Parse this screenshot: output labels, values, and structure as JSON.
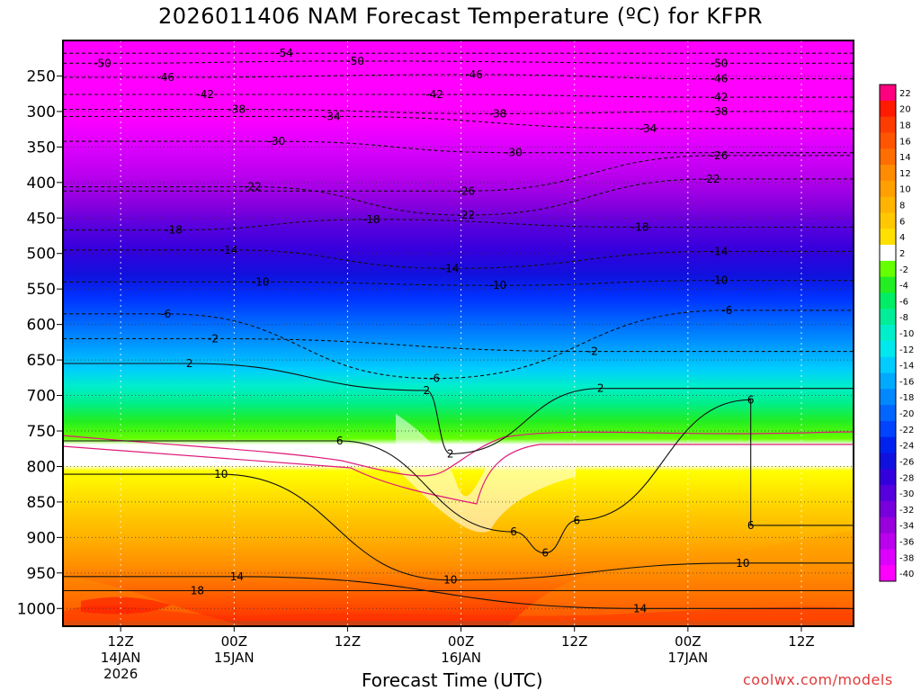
{
  "title": "2026011406 NAM Forecast Temperature (ºC) for KFPR",
  "watermark": "coolwx.com/models",
  "chart_data": {
    "type": "heatmap",
    "title": "2026011406 NAM Forecast Temperature (ºC) for KFPR",
    "xlabel": "Forecast Time (UTC)",
    "ylabel": "",
    "y_ticks": [
      250,
      300,
      350,
      400,
      450,
      500,
      550,
      600,
      650,
      700,
      750,
      800,
      850,
      900,
      950,
      1000
    ],
    "ylim": [
      1025,
      200
    ],
    "x_ticks": [
      {
        "top": "12Z",
        "mid": "14JAN",
        "bot": "2026"
      },
      {
        "top": "00Z",
        "mid": "15JAN",
        "bot": ""
      },
      {
        "top": "12Z",
        "mid": "",
        "bot": ""
      },
      {
        "top": "00Z",
        "mid": "16JAN",
        "bot": ""
      },
      {
        "top": "12Z",
        "mid": "",
        "bot": ""
      },
      {
        "top": "00Z",
        "mid": "17JAN",
        "bot": ""
      },
      {
        "top": "12Z",
        "mid": "",
        "bot": ""
      }
    ],
    "colorbar": {
      "labels": [
        "22",
        "20",
        "18",
        "16",
        "14",
        "12",
        "10",
        "8",
        "6",
        "4",
        "2",
        "-2",
        "-4",
        "-6",
        "-8",
        "-10",
        "-12",
        "-14",
        "-16",
        "-18",
        "-20",
        "-22",
        "-24",
        "-26",
        "-28",
        "-30",
        "-32",
        "-34",
        "-36",
        "-38",
        "-40"
      ],
      "colors": [
        "#ff007f",
        "#ff1a00",
        "#ff3c00",
        "#ff5500",
        "#ff6e00",
        "#ff8c00",
        "#ffa000",
        "#ffb400",
        "#ffc800",
        "#ffe000",
        "#ffffff",
        "#66ff00",
        "#22ee22",
        "#00ee66",
        "#00ee99",
        "#00eecc",
        "#00e8ee",
        "#00ccff",
        "#00aaff",
        "#0088ff",
        "#0066ff",
        "#0044ff",
        "#0022ee",
        "#1111dd",
        "#3300dd",
        "#5500dd",
        "#7700dd",
        "#9900dd",
        "#bb00ee",
        "#dd00ff",
        "#ff00ff"
      ]
    },
    "grid": true,
    "contour_labels": [
      {
        "v": "-54",
        "t": 0.28,
        "p": 218
      },
      {
        "v": "-50",
        "t": 0.05,
        "p": 232
      },
      {
        "v": "-50",
        "t": 0.37,
        "p": 229
      },
      {
        "v": "-50",
        "t": 0.83,
        "p": 232
      },
      {
        "v": "-46",
        "t": 0.13,
        "p": 252
      },
      {
        "v": "-46",
        "t": 0.52,
        "p": 248
      },
      {
        "v": "-46",
        "t": 0.83,
        "p": 254
      },
      {
        "v": "-42",
        "t": 0.18,
        "p": 276
      },
      {
        "v": "-42",
        "t": 0.47,
        "p": 276
      },
      {
        "v": "-42",
        "t": 0.83,
        "p": 280
      },
      {
        "v": "-38",
        "t": 0.22,
        "p": 297
      },
      {
        "v": "-38",
        "t": 0.55,
        "p": 303
      },
      {
        "v": "-38",
        "t": 0.83,
        "p": 300
      },
      {
        "v": "-34",
        "t": 0.34,
        "p": 307
      },
      {
        "v": "-34",
        "t": 0.74,
        "p": 324
      },
      {
        "v": "-30",
        "t": 0.27,
        "p": 342
      },
      {
        "v": "-30",
        "t": 0.57,
        "p": 358
      },
      {
        "v": "-26",
        "t": 0.83,
        "p": 362
      },
      {
        "v": "-26",
        "t": 0.51,
        "p": 412
      },
      {
        "v": "-22",
        "t": 0.24,
        "p": 406
      },
      {
        "v": "-22",
        "t": 0.82,
        "p": 395
      },
      {
        "v": "-22",
        "t": 0.51,
        "p": 446
      },
      {
        "v": "-18",
        "t": 0.14,
        "p": 467
      },
      {
        "v": "-18",
        "t": 0.39,
        "p": 452
      },
      {
        "v": "-18",
        "t": 0.73,
        "p": 463
      },
      {
        "v": "-14",
        "t": 0.21,
        "p": 495
      },
      {
        "v": "-14",
        "t": 0.49,
        "p": 521
      },
      {
        "v": "-14",
        "t": 0.83,
        "p": 497
      },
      {
        "v": "-10",
        "t": 0.25,
        "p": 540
      },
      {
        "v": "-10",
        "t": 0.55,
        "p": 545
      },
      {
        "v": "-10",
        "t": 0.83,
        "p": 538
      },
      {
        "v": "-6",
        "t": 0.13,
        "p": 585
      },
      {
        "v": "-6",
        "t": 0.47,
        "p": 676
      },
      {
        "v": "-6",
        "t": 0.84,
        "p": 580
      },
      {
        "v": "-2",
        "t": 0.19,
        "p": 620
      },
      {
        "v": "-2",
        "t": 0.67,
        "p": 638
      },
      {
        "v": "2",
        "t": 0.16,
        "p": 655
      },
      {
        "v": "2",
        "t": 0.46,
        "p": 693
      },
      {
        "v": "2",
        "t": 0.49,
        "p": 782
      },
      {
        "v": "2",
        "t": 0.68,
        "p": 690
      },
      {
        "v": "6",
        "t": 0.35,
        "p": 764
      },
      {
        "v": "6",
        "t": 0.87,
        "p": 706
      },
      {
        "v": "6",
        "t": 0.57,
        "p": 892
      },
      {
        "v": "6",
        "t": 0.65,
        "p": 876
      },
      {
        "v": "6",
        "t": 0.61,
        "p": 922
      },
      {
        "v": "6",
        "t": 0.87,
        "p": 883
      },
      {
        "v": "10",
        "t": 0.2,
        "p": 811
      },
      {
        "v": "10",
        "t": 0.49,
        "p": 960
      },
      {
        "v": "10",
        "t": 0.86,
        "p": 936
      },
      {
        "v": "14",
        "t": 0.22,
        "p": 955
      },
      {
        "v": "14",
        "t": 0.73,
        "p": 1000
      },
      {
        "v": "18",
        "t": 0.17,
        "p": 975
      }
    ]
  }
}
